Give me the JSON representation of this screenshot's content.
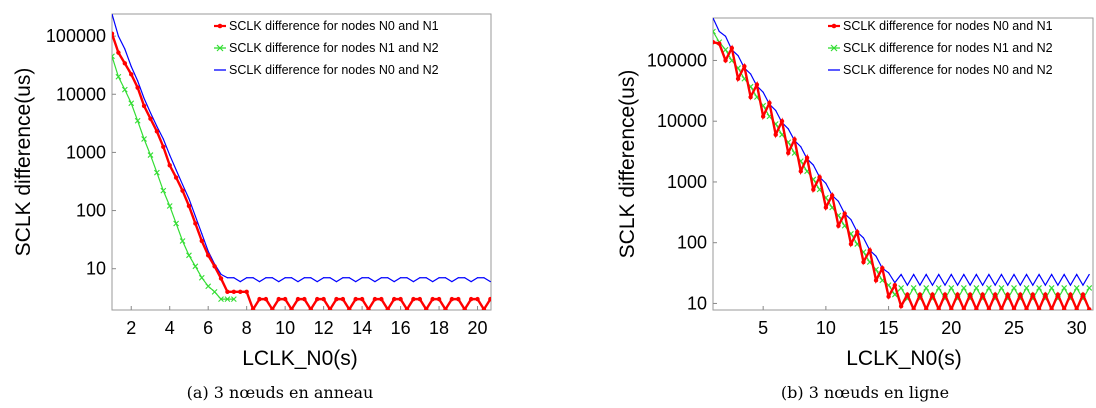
{
  "chart_data": [
    {
      "type": "line",
      "caption": "(a) 3 nœuds en anneau",
      "xlabel": "LCLK_N0(s)",
      "ylabel": "SCLK difference(us)",
      "x_scale": "linear",
      "y_scale": "log",
      "xlim": [
        1,
        20.7
      ],
      "ylim": [
        1.95,
        240000
      ],
      "x_ticks": [
        2,
        4,
        6,
        8,
        10,
        12,
        14,
        16,
        18,
        20
      ],
      "y_ticks": [
        10,
        100,
        1000,
        10000,
        100000
      ],
      "y_tick_labels": [
        "10",
        "100",
        "1000",
        "10000",
        "100000"
      ],
      "legend_position": "top-right",
      "series": [
        {
          "name": "SCLK difference for nodes N0 and N1",
          "color": "#ff0000",
          "marker": "dot",
          "x": [
            1,
            1.333,
            1.667,
            2,
            2.333,
            2.667,
            3,
            3.333,
            3.667,
            4,
            4.333,
            4.667,
            5,
            5.333,
            5.667,
            6,
            6.333,
            6.667,
            7,
            7.333,
            7.667,
            8,
            8.333,
            8.667,
            9,
            9.333,
            9.667,
            10,
            10.333,
            10.667,
            11,
            11.333,
            11.667,
            12,
            12.333,
            12.667,
            13,
            13.333,
            13.667,
            14,
            14.333,
            14.667,
            15,
            15.333,
            15.667,
            16,
            16.333,
            16.667,
            17,
            17.333,
            17.667,
            18,
            18.333,
            18.667,
            19,
            19.333,
            19.667,
            20,
            20.333,
            20.667
          ],
          "y": [
            110000,
            52000,
            34000,
            22000,
            13000,
            6300,
            3800,
            2300,
            1250,
            600,
            370,
            220,
            120,
            60,
            30,
            17,
            11,
            6.8,
            4,
            4,
            4,
            4,
            2,
            3,
            3,
            2,
            3,
            3,
            2,
            3,
            3,
            2,
            3,
            3,
            2,
            3,
            3,
            2,
            3,
            3,
            2,
            3,
            3,
            2,
            3,
            3,
            2,
            3,
            3,
            2,
            3,
            3,
            2,
            3,
            3,
            2,
            3,
            3,
            2,
            3
          ]
        },
        {
          "name": "SCLK difference for nodes N1 and N2",
          "color": "#33dd33",
          "marker": "x",
          "x": [
            1,
            1.333,
            1.667,
            2,
            2.333,
            2.667,
            3,
            3.333,
            3.667,
            4,
            4.333,
            4.667,
            5,
            5.333,
            5.667,
            6,
            6.333,
            6.667,
            7,
            7.333
          ],
          "y": [
            45000,
            20000,
            12000,
            7000,
            3500,
            1700,
            900,
            450,
            220,
            120,
            60,
            30,
            17,
            11,
            7,
            5,
            4,
            3,
            3,
            3
          ]
        },
        {
          "name": "SCLK difference for nodes N0 and N2",
          "color": "#0000ff",
          "marker": "none",
          "x": [
            1,
            1.333,
            1.667,
            2,
            2.333,
            2.667,
            3,
            3.333,
            3.667,
            4,
            4.333,
            4.667,
            5,
            5.333,
            5.667,
            6,
            6.333,
            6.667,
            7,
            7.333,
            7.667,
            8,
            8.333,
            8.667,
            9,
            9.333,
            9.667,
            10,
            10.333,
            10.667,
            11,
            11.333,
            11.667,
            12,
            12.333,
            12.667,
            13,
            13.333,
            13.667,
            14,
            14.333,
            14.667,
            15,
            15.333,
            15.667,
            16,
            16.333,
            16.667,
            17,
            17.333,
            17.667,
            18,
            18.333,
            18.667,
            19,
            19.333,
            19.667,
            20,
            20.333,
            20.667
          ],
          "y": [
            240000,
            100000,
            60000,
            30000,
            17000,
            8500,
            4800,
            2800,
            1700,
            900,
            500,
            280,
            160,
            80,
            40,
            20,
            12,
            8,
            7,
            7,
            6,
            7,
            7,
            6,
            7,
            7,
            6,
            7,
            7,
            6,
            7,
            7,
            6,
            7,
            7,
            6,
            7,
            7,
            6,
            7,
            7,
            6,
            7,
            7,
            6,
            7,
            7,
            6,
            7,
            7,
            6,
            7,
            7,
            6,
            7,
            7,
            6,
            7,
            7,
            6
          ]
        }
      ]
    },
    {
      "type": "line",
      "caption": "(b) 3 nœuds en ligne",
      "xlabel": "LCLK_N0(s)",
      "ylabel": "SCLK difference(us)",
      "x_scale": "linear",
      "y_scale": "log",
      "xlim": [
        1,
        31.3
      ],
      "ylim": [
        7.8,
        500000
      ],
      "x_ticks": [
        5,
        10,
        15,
        20,
        25,
        30
      ],
      "y_ticks": [
        10,
        100,
        1000,
        10000,
        100000
      ],
      "y_tick_labels": [
        "10",
        "100",
        "1000",
        "10000",
        "100000"
      ],
      "legend_position": "top-right",
      "series": [
        {
          "name": "SCLK difference for nodes N0 and N1",
          "color": "#ff0000",
          "marker": "dot",
          "x": [
            1,
            1.5,
            2,
            2.5,
            3,
            3.5,
            4,
            4.5,
            5,
            5.5,
            6,
            6.5,
            7,
            7.5,
            8,
            8.5,
            9,
            9.5,
            10,
            10.5,
            11,
            11.5,
            12,
            12.5,
            13,
            13.5,
            14,
            14.5,
            15,
            15.5,
            16,
            16.5,
            17,
            17.5,
            18,
            18.5,
            19,
            19.5,
            20,
            20.5,
            21,
            21.5,
            22,
            22.5,
            23,
            23.5,
            24,
            24.5,
            25,
            25.5,
            26,
            26.5,
            27,
            27.5,
            28,
            28.5,
            29,
            29.5,
            30,
            30.5,
            31
          ],
          "y": [
            200000,
            190000,
            100000,
            160000,
            50000,
            80000,
            25000,
            40000,
            12000,
            20000,
            6000,
            10000,
            3000,
            5000,
            1500,
            2500,
            750,
            1200,
            380,
            600,
            190,
            300,
            95,
            150,
            48,
            75,
            24,
            38,
            13,
            20,
            9,
            14,
            8,
            14,
            8,
            14,
            8,
            14,
            8,
            14,
            8,
            14,
            8,
            14,
            8,
            14,
            8,
            14,
            8,
            14,
            8,
            14,
            8,
            14,
            8,
            14,
            8,
            14,
            8,
            14,
            8
          ]
        },
        {
          "name": "SCLK difference for nodes N1 and N2",
          "color": "#33dd33",
          "marker": "x",
          "x": [
            1,
            1.5,
            2,
            2.5,
            3,
            3.5,
            4,
            4.5,
            5,
            5.5,
            6,
            6.5,
            7,
            7.5,
            8,
            8.5,
            9,
            9.5,
            10,
            10.5,
            11,
            11.5,
            12,
            12.5,
            13,
            13.5,
            14,
            14.5,
            15,
            15.5,
            16,
            16.5,
            17,
            17.5,
            18,
            18.5,
            19,
            19.5,
            20,
            20.5,
            21,
            21.5,
            22,
            22.5,
            23,
            23.5,
            24,
            24.5,
            25,
            25.5,
            26,
            26.5,
            27,
            27.5,
            28,
            28.5,
            29,
            29.5,
            30,
            30.5,
            31
          ],
          "y": [
            300000,
            200000,
            150000,
            100000,
            75000,
            50000,
            37000,
            25000,
            18000,
            12000,
            9000,
            6000,
            4500,
            3000,
            2200,
            1500,
            1100,
            750,
            550,
            380,
            280,
            190,
            140,
            95,
            70,
            48,
            36,
            24,
            20,
            14,
            18,
            12,
            18,
            12,
            18,
            12,
            18,
            12,
            18,
            12,
            18,
            12,
            18,
            12,
            18,
            12,
            18,
            12,
            18,
            12,
            18,
            12,
            18,
            12,
            18,
            12,
            18,
            12,
            18,
            12,
            18
          ]
        },
        {
          "name": "SCLK difference for nodes N0 and N2",
          "color": "#0000ff",
          "marker": "none",
          "x": [
            1,
            1.5,
            2,
            2.5,
            3,
            3.5,
            4,
            4.5,
            5,
            5.5,
            6,
            6.5,
            7,
            7.5,
            8,
            8.5,
            9,
            9.5,
            10,
            10.5,
            11,
            11.5,
            12,
            12.5,
            13,
            13.5,
            14,
            14.5,
            15,
            15.5,
            16,
            16.5,
            17,
            17.5,
            18,
            18.5,
            19,
            19.5,
            20,
            20.5,
            21,
            21.5,
            22,
            22.5,
            23,
            23.5,
            24,
            24.5,
            25,
            25.5,
            26,
            26.5,
            27,
            27.5,
            28,
            28.5,
            29,
            29.5,
            30,
            30.5,
            31
          ],
          "y": [
            500000,
            300000,
            250000,
            150000,
            120000,
            75000,
            60000,
            38000,
            30000,
            19000,
            15000,
            9500,
            7500,
            4800,
            3800,
            2400,
            1900,
            1200,
            950,
            600,
            480,
            300,
            240,
            150,
            120,
            75,
            60,
            38,
            32,
            22,
            30,
            20,
            30,
            20,
            30,
            20,
            30,
            20,
            30,
            20,
            30,
            20,
            30,
            20,
            30,
            20,
            30,
            20,
            30,
            20,
            30,
            20,
            30,
            20,
            30,
            20,
            30,
            20,
            30,
            20,
            30
          ]
        }
      ]
    }
  ]
}
